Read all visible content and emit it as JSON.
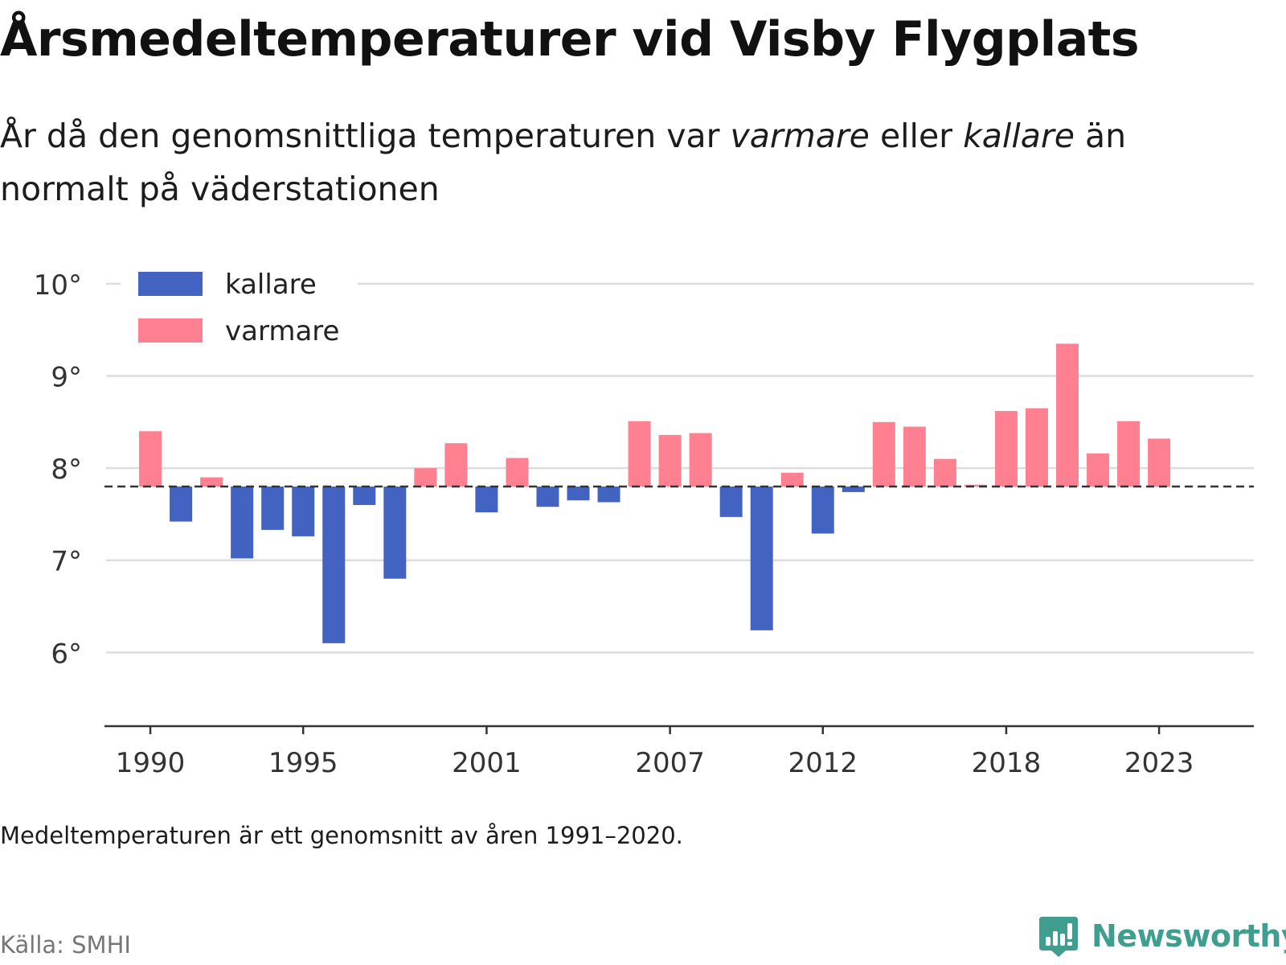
{
  "title": "Årsmedeltemperaturer vid Visby Flygplats",
  "subtitle": {
    "part1": "År då den genomsnittliga temperaturen var ",
    "warm_word": "varmare",
    "part2": " eller ",
    "cold_word": "kallare",
    "part3": " än normalt på väderstationen"
  },
  "note": "Medeltemperaturen är ett genomsnitt av åren 1991–2020.",
  "source": "Källa: SMHI",
  "brand": {
    "name": "Newsworthy",
    "icon": "newsworthy-logo-icon",
    "color": "#3f9e8f"
  },
  "colors": {
    "colder": "#4263c1",
    "warmer": "#ff8091",
    "baseline": "#333333",
    "grid": "#dddddd",
    "axis": "#333333"
  },
  "chart_data": {
    "type": "bar",
    "baseline": 7.8,
    "ylim": [
      5.2,
      10.2
    ],
    "yticks": [
      6,
      7,
      8,
      9,
      10
    ],
    "ytick_labels": [
      "6°",
      "7°",
      "8°",
      "9°",
      "10°"
    ],
    "xlim": [
      1988.5,
      2026.1
    ],
    "xticks": [
      1990,
      1995,
      2001,
      2007,
      2012,
      2018,
      2023
    ],
    "xtick_labels": [
      "1990",
      "1995",
      "2001",
      "2007",
      "2012",
      "2018",
      "2023"
    ],
    "grid": true,
    "legend": {
      "placement": "top-left",
      "items": [
        {
          "label": "kallare",
          "key": "colder"
        },
        {
          "label": "varmare",
          "key": "warmer"
        }
      ]
    },
    "years": [
      1990,
      1991,
      1992,
      1993,
      1994,
      1995,
      1996,
      1997,
      1998,
      1999,
      2000,
      2001,
      2002,
      2003,
      2004,
      2005,
      2006,
      2007,
      2008,
      2009,
      2010,
      2011,
      2012,
      2013,
      2014,
      2015,
      2016,
      2017,
      2018,
      2019,
      2020,
      2021,
      2022,
      2023
    ],
    "values": [
      8.4,
      7.42,
      7.9,
      7.02,
      7.33,
      7.26,
      6.1,
      7.6,
      6.8,
      8.0,
      8.27,
      7.52,
      8.11,
      7.58,
      7.65,
      7.63,
      8.51,
      8.36,
      8.38,
      7.47,
      6.24,
      7.95,
      7.29,
      7.74,
      8.5,
      8.45,
      8.1,
      7.82,
      8.62,
      8.65,
      9.35,
      8.16,
      8.51,
      8.32
    ]
  }
}
